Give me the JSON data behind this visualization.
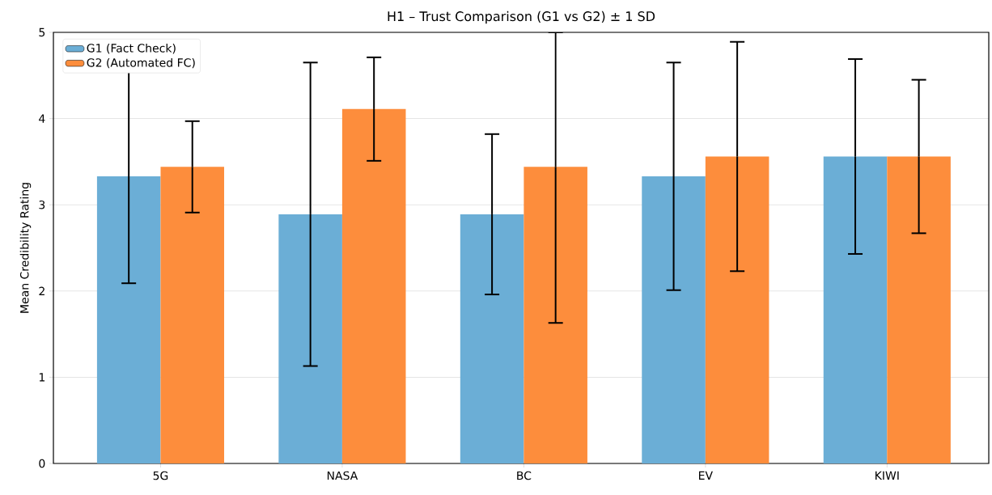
{
  "chart_data": {
    "type": "bar",
    "title": "H1 – Trust Comparison (G1 vs G2) ± 1 SD",
    "ylabel": "Mean Credibility Rating",
    "categories": [
      "5G",
      "NASA",
      "BC",
      "EV",
      "KIWI"
    ],
    "series": [
      {
        "name": "G1 (Fact Check)",
        "color": "#6baed6",
        "values": [
          3.33,
          2.89,
          2.89,
          3.33,
          3.56
        ],
        "errors": [
          1.24,
          1.76,
          0.93,
          1.32,
          1.13
        ]
      },
      {
        "name": "G2 (Automated FC)",
        "color": "#fd8d3c",
        "values": [
          3.44,
          4.11,
          3.44,
          3.56,
          3.56
        ],
        "errors": [
          0.53,
          0.6,
          [
            1.63,
            5
          ],
          1.33,
          0.89
        ]
      }
    ],
    "ylim": [
      0,
      5
    ],
    "yticks": [
      0,
      1,
      2,
      3,
      4,
      5
    ],
    "grid": "y",
    "legend": "top left"
  }
}
